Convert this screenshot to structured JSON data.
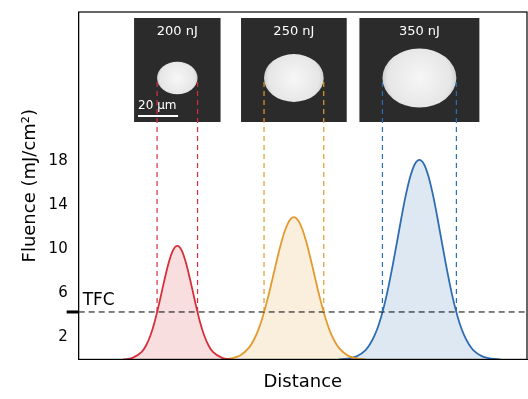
{
  "chart_data": {
    "type": "line",
    "x_label": "Distance",
    "y_label": "Fluence (mJ/cm²)",
    "xlim": [
      0,
      100
    ],
    "ylim": [
      0,
      31.5
    ],
    "yticks": [
      2,
      6,
      10,
      14,
      18
    ],
    "tick_labels": "y",
    "grid": false,
    "threshold": {
      "label": "TFC",
      "value": 4.3,
      "line_style": "dashed"
    },
    "scale_bar": {
      "label": "20 µm"
    },
    "series": [
      {
        "color": "#d62f3a",
        "inset_label": "200 nJ",
        "x": [
          10,
          12,
          14,
          15,
          16,
          17,
          18,
          19,
          20,
          21,
          22,
          23,
          24,
          25,
          26,
          27,
          28,
          29,
          30,
          32,
          34
        ],
        "values": [
          0,
          0.14,
          0.65,
          1.24,
          2.17,
          3.49,
          5.16,
          6.98,
          8.66,
          9.87,
          10.3,
          9.87,
          8.66,
          6.98,
          5.16,
          3.49,
          2.17,
          1.24,
          0.65,
          0.14,
          0
        ]
      },
      {
        "color": "#e39a2e",
        "inset_label": "250 nJ",
        "x": [
          32,
          34,
          36,
          38,
          39,
          40,
          41,
          42,
          43,
          44,
          45,
          46,
          47,
          48,
          49,
          50,
          51,
          52,
          53,
          54,
          55,
          56,
          57,
          58,
          60,
          62,
          64
        ],
        "values": [
          0,
          0.1,
          0.36,
          1.07,
          1.71,
          2.61,
          3.8,
          5.26,
          6.92,
          8.66,
          10.31,
          11.67,
          12.58,
          12.9,
          12.58,
          11.67,
          10.31,
          8.66,
          6.92,
          5.26,
          3.8,
          2.61,
          1.71,
          1.07,
          0.36,
          0.1,
          0
        ]
      },
      {
        "color": "#2e6db4",
        "inset_label": "350 nJ",
        "x": [
          58,
          60,
          62,
          64,
          65,
          66,
          67,
          68,
          69,
          70,
          71,
          72,
          73,
          74,
          75,
          76,
          77,
          78,
          79,
          80,
          81,
          82,
          83,
          84,
          85,
          86,
          87,
          88,
          90,
          92,
          94
        ],
        "values": [
          0,
          0.08,
          0.28,
          0.85,
          1.39,
          2.17,
          3.24,
          4.65,
          6.4,
          8.43,
          10.64,
          12.89,
          14.96,
          16.63,
          17.72,
          18.1,
          17.72,
          16.63,
          14.96,
          12.89,
          10.64,
          8.43,
          6.4,
          4.65,
          3.24,
          2.17,
          1.39,
          0.85,
          0.28,
          0.08,
          0
        ]
      }
    ]
  }
}
